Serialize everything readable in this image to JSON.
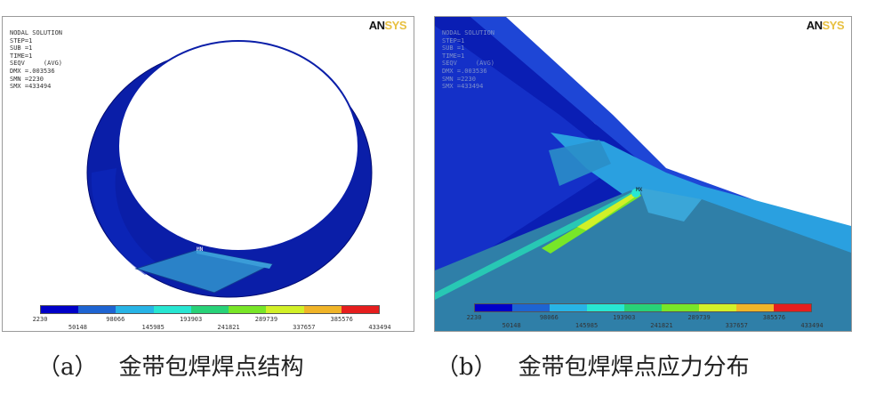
{
  "panel_a": {
    "info_lines": [
      "NODAL SOLUTION",
      "STEP=1",
      "SUB =1",
      "TIME=1",
      "SEQV     (AVG)",
      "DMX =.003536",
      "SMN =2230",
      "SMX =433494"
    ],
    "logo_main": "AN",
    "logo_accent": "SYS",
    "mx_label": "MX",
    "mn_label": "MN",
    "legend_values": [
      "2230",
      "50148",
      "98066",
      "145985",
      "193903",
      "241821",
      "289739",
      "337657",
      "385576",
      "433494"
    ],
    "legend_colors": [
      "#0000c8",
      "#1e64d2",
      "#28b4e6",
      "#28e6d2",
      "#28d278",
      "#78e628",
      "#d2f028",
      "#f0b428",
      "#f08228",
      "#e61e1e"
    ]
  },
  "panel_b": {
    "info_lines": [
      "NODAL SOLUTION",
      "STEP=1",
      "SUB =1",
      "TIME=1",
      "SEQV     (AVG)",
      "DMX =.003536",
      "SMN =2230",
      "SMX =433494"
    ],
    "logo_main": "AN",
    "logo_accent": "SYS",
    "mx_label": "MX",
    "legend_values": [
      "2230",
      "50148",
      "98066",
      "145985",
      "193903",
      "241821",
      "289739",
      "337657",
      "385576",
      "433494"
    ]
  },
  "captions": {
    "a_prefix": "（a）",
    "a_text": "金带包焊焊点结构",
    "b_prefix": "（b）",
    "b_text": "金带包焊焊点应力分布"
  }
}
